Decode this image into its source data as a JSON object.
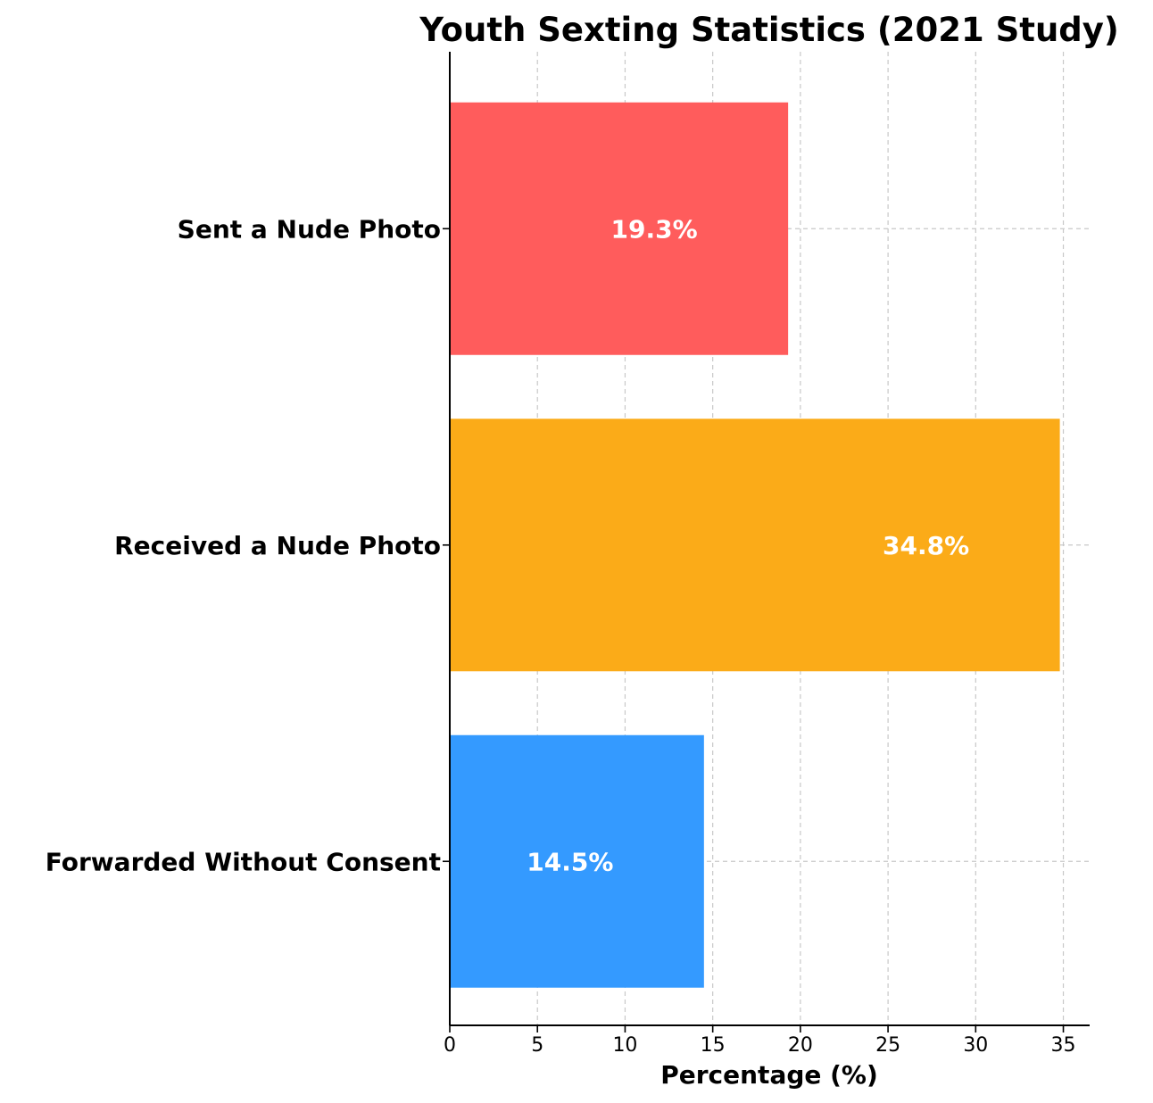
{
  "chart_data": {
    "type": "bar",
    "orientation": "horizontal",
    "title": "Youth Sexting Statistics (2021 Study)",
    "xlabel": "Percentage (%)",
    "ylabel": "",
    "categories": [
      "Sent a Nude Photo",
      "Received a Nude Photo",
      "Forwarded Without Consent"
    ],
    "values": [
      19.3,
      34.8,
      14.5
    ],
    "data_labels": [
      "19.3%",
      "34.8%",
      "14.5%"
    ],
    "colors": [
      "#ff5c5c",
      "#fbab18",
      "#349aff"
    ],
    "xlim": [
      0,
      36.5
    ],
    "xticks": [
      0,
      5,
      10,
      15,
      20,
      25,
      30,
      35
    ],
    "grid": true,
    "legend": "none"
  }
}
